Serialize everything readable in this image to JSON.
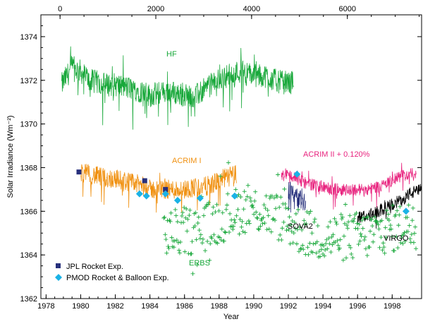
{
  "chart_data": {
    "type": "line",
    "xlabel": "Year",
    "ylabel": "Solar Irradiance (Wm⁻²)",
    "xlim": [
      1977.7,
      1999.7
    ],
    "ylim": [
      1362,
      1375
    ],
    "x_ticks": [
      "1978",
      "1980",
      "1982",
      "1984",
      "1986",
      "1988",
      "1990",
      "1992",
      "1994",
      "1996",
      "1998"
    ],
    "y_ticks": [
      "1362",
      "1364",
      "1366",
      "1368",
      "1370",
      "1372",
      "1374"
    ],
    "top_axis": {
      "range": [
        -400,
        7550
      ],
      "ticks": [
        "0",
        "2000",
        "4000",
        "6000"
      ]
    },
    "colors": {
      "HF": "#18a83a",
      "ACRIM I": "#f0900f",
      "ACRIM II": "#e8237e",
      "SOVA2": "#27307c",
      "VIRGO": "#000000",
      "ERBS": "#18a83a",
      "JPL": "#27307c",
      "PMOD": "#1ab2e6"
    },
    "series": [
      {
        "name": "HF",
        "segments": [
          {
            "x0": 1978.9,
            "x1": 1986.7,
            "points": [
              [
                1978.9,
                1371.8
              ],
              [
                1979.5,
                1372.6
              ],
              [
                1980.0,
                1372.4
              ],
              [
                1980.5,
                1372.0
              ],
              [
                1981.0,
                1371.9
              ],
              [
                1981.5,
                1371.8
              ],
              [
                1982.0,
                1371.8
              ],
              [
                1982.5,
                1371.7
              ],
              [
                1983.0,
                1371.6
              ],
              [
                1983.5,
                1371.5
              ],
              [
                1984.0,
                1371.3
              ],
              [
                1984.5,
                1371.4
              ],
              [
                1985.0,
                1371.5
              ],
              [
                1985.5,
                1371.4
              ],
              [
                1986.0,
                1371.3
              ],
              [
                1986.7,
                1371.3
              ]
            ]
          },
          {
            "x0": 1986.7,
            "x1": 1992.3,
            "points": [
              [
                1986.7,
                1371.3
              ],
              [
                1987.2,
                1371.6
              ],
              [
                1987.7,
                1371.9
              ],
              [
                1988.2,
                1372.1
              ],
              [
                1988.7,
                1372.3
              ],
              [
                1989.2,
                1372.4
              ],
              [
                1989.7,
                1372.3
              ],
              [
                1990.2,
                1372.2
              ],
              [
                1990.7,
                1372.2
              ],
              [
                1991.2,
                1372.0
              ],
              [
                1991.7,
                1371.9
              ],
              [
                1992.3,
                1371.9
              ]
            ]
          }
        ]
      },
      {
        "name": "ACRIM I",
        "segments": [
          {
            "x0": 1980.0,
            "x1": 1989.0,
            "points": [
              [
                1980.0,
                1367.8
              ],
              [
                1980.5,
                1367.7
              ],
              [
                1981.0,
                1367.6
              ],
              [
                1981.5,
                1367.5
              ],
              [
                1982.0,
                1367.5
              ],
              [
                1982.5,
                1367.4
              ],
              [
                1983.0,
                1367.3
              ],
              [
                1983.5,
                1367.2
              ],
              [
                1984.0,
                1367.0
              ],
              [
                1984.5,
                1367.0
              ],
              [
                1985.0,
                1367.0
              ],
              [
                1985.5,
                1367.0
              ],
              [
                1986.0,
                1367.0
              ],
              [
                1986.5,
                1367.1
              ],
              [
                1987.0,
                1367.1
              ],
              [
                1987.5,
                1367.2
              ],
              [
                1988.0,
                1367.4
              ],
              [
                1988.5,
                1367.6
              ],
              [
                1989.0,
                1367.7
              ]
            ]
          }
        ]
      },
      {
        "name": "ACRIM II",
        "label": "ACRIM II + 0.120%",
        "segments": [
          {
            "x0": 1991.6,
            "x1": 1999.4,
            "points": [
              [
                1991.6,
                1367.6
              ],
              [
                1992.0,
                1367.7
              ],
              [
                1992.5,
                1367.5
              ],
              [
                1993.0,
                1367.3
              ],
              [
                1993.5,
                1367.2
              ],
              [
                1994.0,
                1367.1
              ],
              [
                1994.5,
                1367.0
              ],
              [
                1995.0,
                1367.0
              ],
              [
                1995.5,
                1367.0
              ],
              [
                1996.0,
                1367.0
              ],
              [
                1996.5,
                1367.0
              ],
              [
                1997.0,
                1367.1
              ],
              [
                1997.5,
                1367.2
              ],
              [
                1998.0,
                1367.4
              ],
              [
                1998.5,
                1367.6
              ],
              [
                1999.0,
                1367.7
              ],
              [
                1999.4,
                1367.7
              ]
            ]
          }
        ]
      },
      {
        "name": "SOVA2",
        "segments": [
          {
            "x0": 1992.0,
            "x1": 1993.0,
            "points": [
              [
                1992.0,
                1367.0
              ],
              [
                1992.2,
                1366.9
              ],
              [
                1992.4,
                1366.7
              ],
              [
                1992.6,
                1366.6
              ],
              [
                1992.8,
                1366.5
              ],
              [
                1993.0,
                1366.4
              ]
            ]
          }
        ]
      },
      {
        "name": "VIRGO",
        "segments": [
          {
            "x0": 1996.0,
            "x1": 1999.7,
            "points": [
              [
                1996.0,
                1365.7
              ],
              [
                1996.5,
                1365.8
              ],
              [
                1997.0,
                1365.9
              ],
              [
                1997.5,
                1366.1
              ],
              [
                1998.0,
                1366.3
              ],
              [
                1998.5,
                1366.5
              ],
              [
                1999.0,
                1366.8
              ],
              [
                1999.7,
                1367.0
              ]
            ]
          }
        ]
      },
      {
        "name": "ERBS",
        "marker": "+",
        "segments": [
          {
            "x0": 1984.8,
            "x1": 1999.4,
            "points": [
              [
                1984.8,
                1365.0
              ],
              [
                1985.5,
                1365.0
              ],
              [
                1986.0,
                1365.1
              ],
              [
                1986.5,
                1365.1
              ],
              [
                1987.0,
                1365.2
              ],
              [
                1987.5,
                1365.4
              ],
              [
                1988.0,
                1365.6
              ],
              [
                1988.5,
                1365.8
              ],
              [
                1989.0,
                1366.0
              ],
              [
                1989.5,
                1366.1
              ],
              [
                1990.0,
                1366.1
              ],
              [
                1990.5,
                1366.0
              ],
              [
                1991.0,
                1365.9
              ],
              [
                1991.5,
                1365.7
              ],
              [
                1992.0,
                1365.5
              ],
              [
                1992.5,
                1365.2
              ],
              [
                1993.0,
                1365.0
              ],
              [
                1993.5,
                1364.9
              ],
              [
                1994.0,
                1364.8
              ],
              [
                1994.5,
                1364.8
              ],
              [
                1995.0,
                1364.8
              ],
              [
                1995.5,
                1364.8
              ],
              [
                1996.0,
                1364.9
              ],
              [
                1996.5,
                1364.9
              ],
              [
                1997.0,
                1365.0
              ],
              [
                1997.5,
                1365.1
              ],
              [
                1998.0,
                1365.2
              ],
              [
                1999.0,
                1365.4
              ]
            ]
          }
        ]
      }
    ],
    "jpl_points": [
      [
        1979.9,
        1367.8
      ],
      [
        1983.7,
        1367.4
      ],
      [
        1984.9,
        1367.0
      ]
    ],
    "pmod_points": [
      [
        1983.4,
        1366.8
      ],
      [
        1983.8,
        1366.7
      ],
      [
        1984.9,
        1366.8
      ],
      [
        1985.6,
        1366.5
      ],
      [
        1986.9,
        1366.6
      ],
      [
        1988.9,
        1366.7
      ],
      [
        1992.5,
        1367.7
      ],
      [
        1998.8,
        1366.0
      ]
    ],
    "series_labels": {
      "HF": "HF",
      "ACRIM I": "ACRIM I",
      "ACRIM II": "ACRIM II + 0.120%",
      "SOVA2": "SOVA2",
      "VIRGO": "VIRGO",
      "ERBS": "ERBS"
    },
    "legend": {
      "placement": "bottom-left",
      "entries": [
        {
          "label": "JPL Rocket Exp.",
          "marker": "square"
        },
        {
          "label": "PMOD Rocket & Balloon Exp.",
          "marker": "diamond"
        }
      ]
    }
  }
}
